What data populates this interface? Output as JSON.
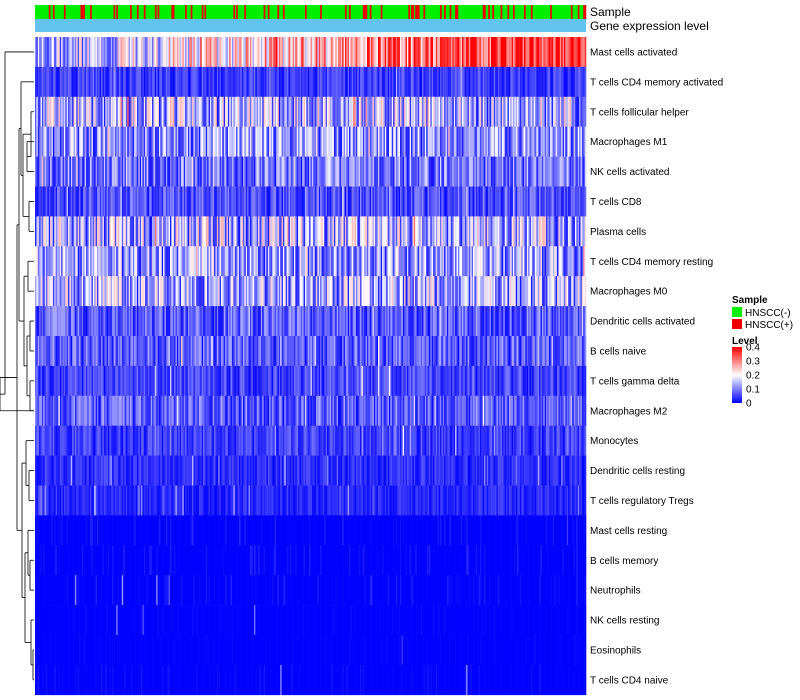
{
  "chart_data": {
    "type": "heatmap",
    "title": "",
    "annotations": {
      "sample_label": "Sample",
      "expression_label": "Gene expression level"
    },
    "rows": [
      {
        "name": "Mast cells activated",
        "mean": 0.24
      },
      {
        "name": "T cells CD4 memory activated",
        "mean": 0.045
      },
      {
        "name": "T cells follicular helper",
        "mean": 0.14
      },
      {
        "name": "Macrophages M1",
        "mean": 0.11
      },
      {
        "name": "NK cells activated",
        "mean": 0.09
      },
      {
        "name": "T cells CD8",
        "mean": 0.06
      },
      {
        "name": "Plasma cells",
        "mean": 0.14
      },
      {
        "name": "T cells CD4 memory resting",
        "mean": 0.12
      },
      {
        "name": "Macrophages M0",
        "mean": 0.13
      },
      {
        "name": "Dendritic cells activated",
        "mean": 0.07
      },
      {
        "name": "B cells naive",
        "mean": 0.07
      },
      {
        "name": "T cells gamma delta",
        "mean": 0.05
      },
      {
        "name": "Macrophages M2",
        "mean": 0.07
      },
      {
        "name": "Monocytes",
        "mean": 0.045
      },
      {
        "name": "Dendritic cells resting",
        "mean": 0.035
      },
      {
        "name": "T cells regulatory  Tregs",
        "mean": 0.03
      },
      {
        "name": "Mast cells resting",
        "mean": 0.015
      },
      {
        "name": "B cells memory",
        "mean": 0.015
      },
      {
        "name": "Neutrophils",
        "mean": 0.015
      },
      {
        "name": "NK cells resting",
        "mean": 0.005
      },
      {
        "name": "Eosinophils",
        "mean": 0.004
      },
      {
        "name": "T cells CD4 naive",
        "mean": 0.01
      }
    ],
    "n_samples": 400,
    "sample_group_fraction_positive": 0.15,
    "legend": {
      "sample": {
        "title": "Sample",
        "entries": [
          {
            "label": "HNSCC(-)",
            "color": "#00ee00"
          },
          {
            "label": "HNSCC(+)",
            "color": "#ee0000"
          }
        ]
      },
      "level": {
        "title": "Level",
        "ticks": [
          {
            "label": "0.4",
            "value": 0.4
          },
          {
            "label": "0.3",
            "value": 0.3
          },
          {
            "label": "0.2",
            "value": 0.2
          },
          {
            "label": "0.1",
            "value": 0.1
          },
          {
            "label": "0",
            "value": 0
          }
        ],
        "range": [
          0,
          0.4
        ]
      }
    },
    "colors": {
      "low": "#0000ff",
      "mid": "#ffffff",
      "high": "#ff0000",
      "expression_bar": "#62c3ee"
    }
  }
}
